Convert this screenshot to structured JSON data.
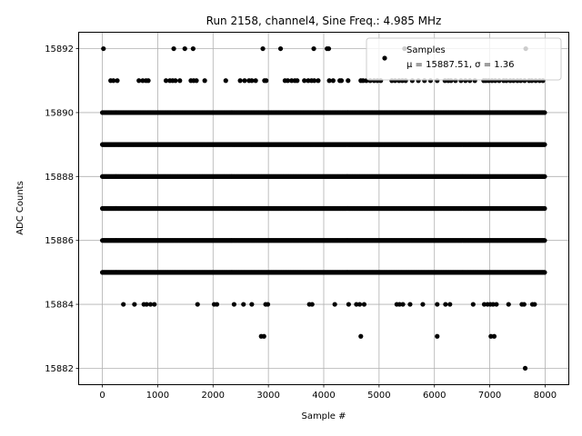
{
  "chart_data": {
    "type": "scatter",
    "title": "Run 2158, channel4, Sine Freq.: 4.985 MHz",
    "xlabel": "Sample #",
    "ylabel": "ADC Counts",
    "xlim": [
      -420,
      8420
    ],
    "ylim": [
      15881.5,
      15892.5
    ],
    "xticks": [
      0,
      1000,
      2000,
      3000,
      4000,
      5000,
      6000,
      7000,
      8000
    ],
    "yticks": [
      15882,
      15884,
      15886,
      15888,
      15890,
      15892
    ],
    "grid": true,
    "legend_position": "top-right",
    "marker_color": "#000000",
    "legend": {
      "series_label": "Samples",
      "stats_label": "μ = 15887.51, σ = 1.36"
    },
    "series": [
      {
        "name": "Samples",
        "dense_levels": [
          {
            "y": 15890,
            "x_range": [
              0,
              8000
            ]
          },
          {
            "y": 15889,
            "x_range": [
              0,
              8000
            ]
          },
          {
            "y": 15888,
            "x_range": [
              0,
              8000
            ]
          },
          {
            "y": 15887,
            "x_range": [
              0,
              8000
            ]
          },
          {
            "y": 15886,
            "x_range": [
              0,
              8000
            ]
          },
          {
            "y": 15885,
            "x_range": [
              0,
              8000
            ]
          }
        ],
        "sparse_points": [
          {
            "y": 15892,
            "x": [
              20,
              1290,
              1490,
              1640,
              2900,
              3220,
              3820,
              4060,
              4090,
              5460,
              7650
            ]
          },
          {
            "y": 15891,
            "x": [
              150,
              200,
              270,
              660,
              730,
              790,
              830,
              1150,
              1220,
              1270,
              1320,
              1400,
              1600,
              1650,
              1700,
              1850,
              2230,
              2490,
              2570,
              2650,
              2700,
              2770,
              2930,
              2960,
              3300,
              3350,
              3420,
              3480,
              3520,
              3650,
              3720,
              3780,
              3830,
              3900,
              4100,
              4170,
              4290,
              4320,
              4440,
              4670,
              4710,
              4770,
              4840,
              4910,
              4970,
              5030,
              5230,
              5290,
              5360,
              5420,
              5480,
              5600,
              5710,
              5820,
              5930,
              6050,
              6190,
              6250,
              6300,
              6380,
              6480,
              6560,
              6640,
              6730,
              6890,
              6930,
              6980,
              7040,
              7100,
              7170,
              7250,
              7300,
              7370,
              7430,
              7500,
              7560,
              7630,
              7710,
              7760,
              7830,
              7900,
              7960
            ]
          },
          {
            "y": 15884,
            "x": [
              380,
              580,
              750,
              800,
              870,
              940,
              1720,
              2020,
              2070,
              2380,
              2550,
              2700,
              2950,
              2990,
              3740,
              3790,
              4200,
              4450,
              4590,
              4650,
              4730,
              5320,
              5370,
              5430,
              5560,
              5790,
              6050,
              6200,
              6280,
              6700,
              6900,
              6960,
              7010,
              7060,
              7120,
              7340,
              7580,
              7620,
              7770,
              7810
            ]
          },
          {
            "y": 15883,
            "x": [
              2870,
              2920,
              4670,
              6050,
              7020,
              7080
            ]
          },
          {
            "y": 15882,
            "x": [
              7640
            ]
          }
        ]
      }
    ]
  }
}
